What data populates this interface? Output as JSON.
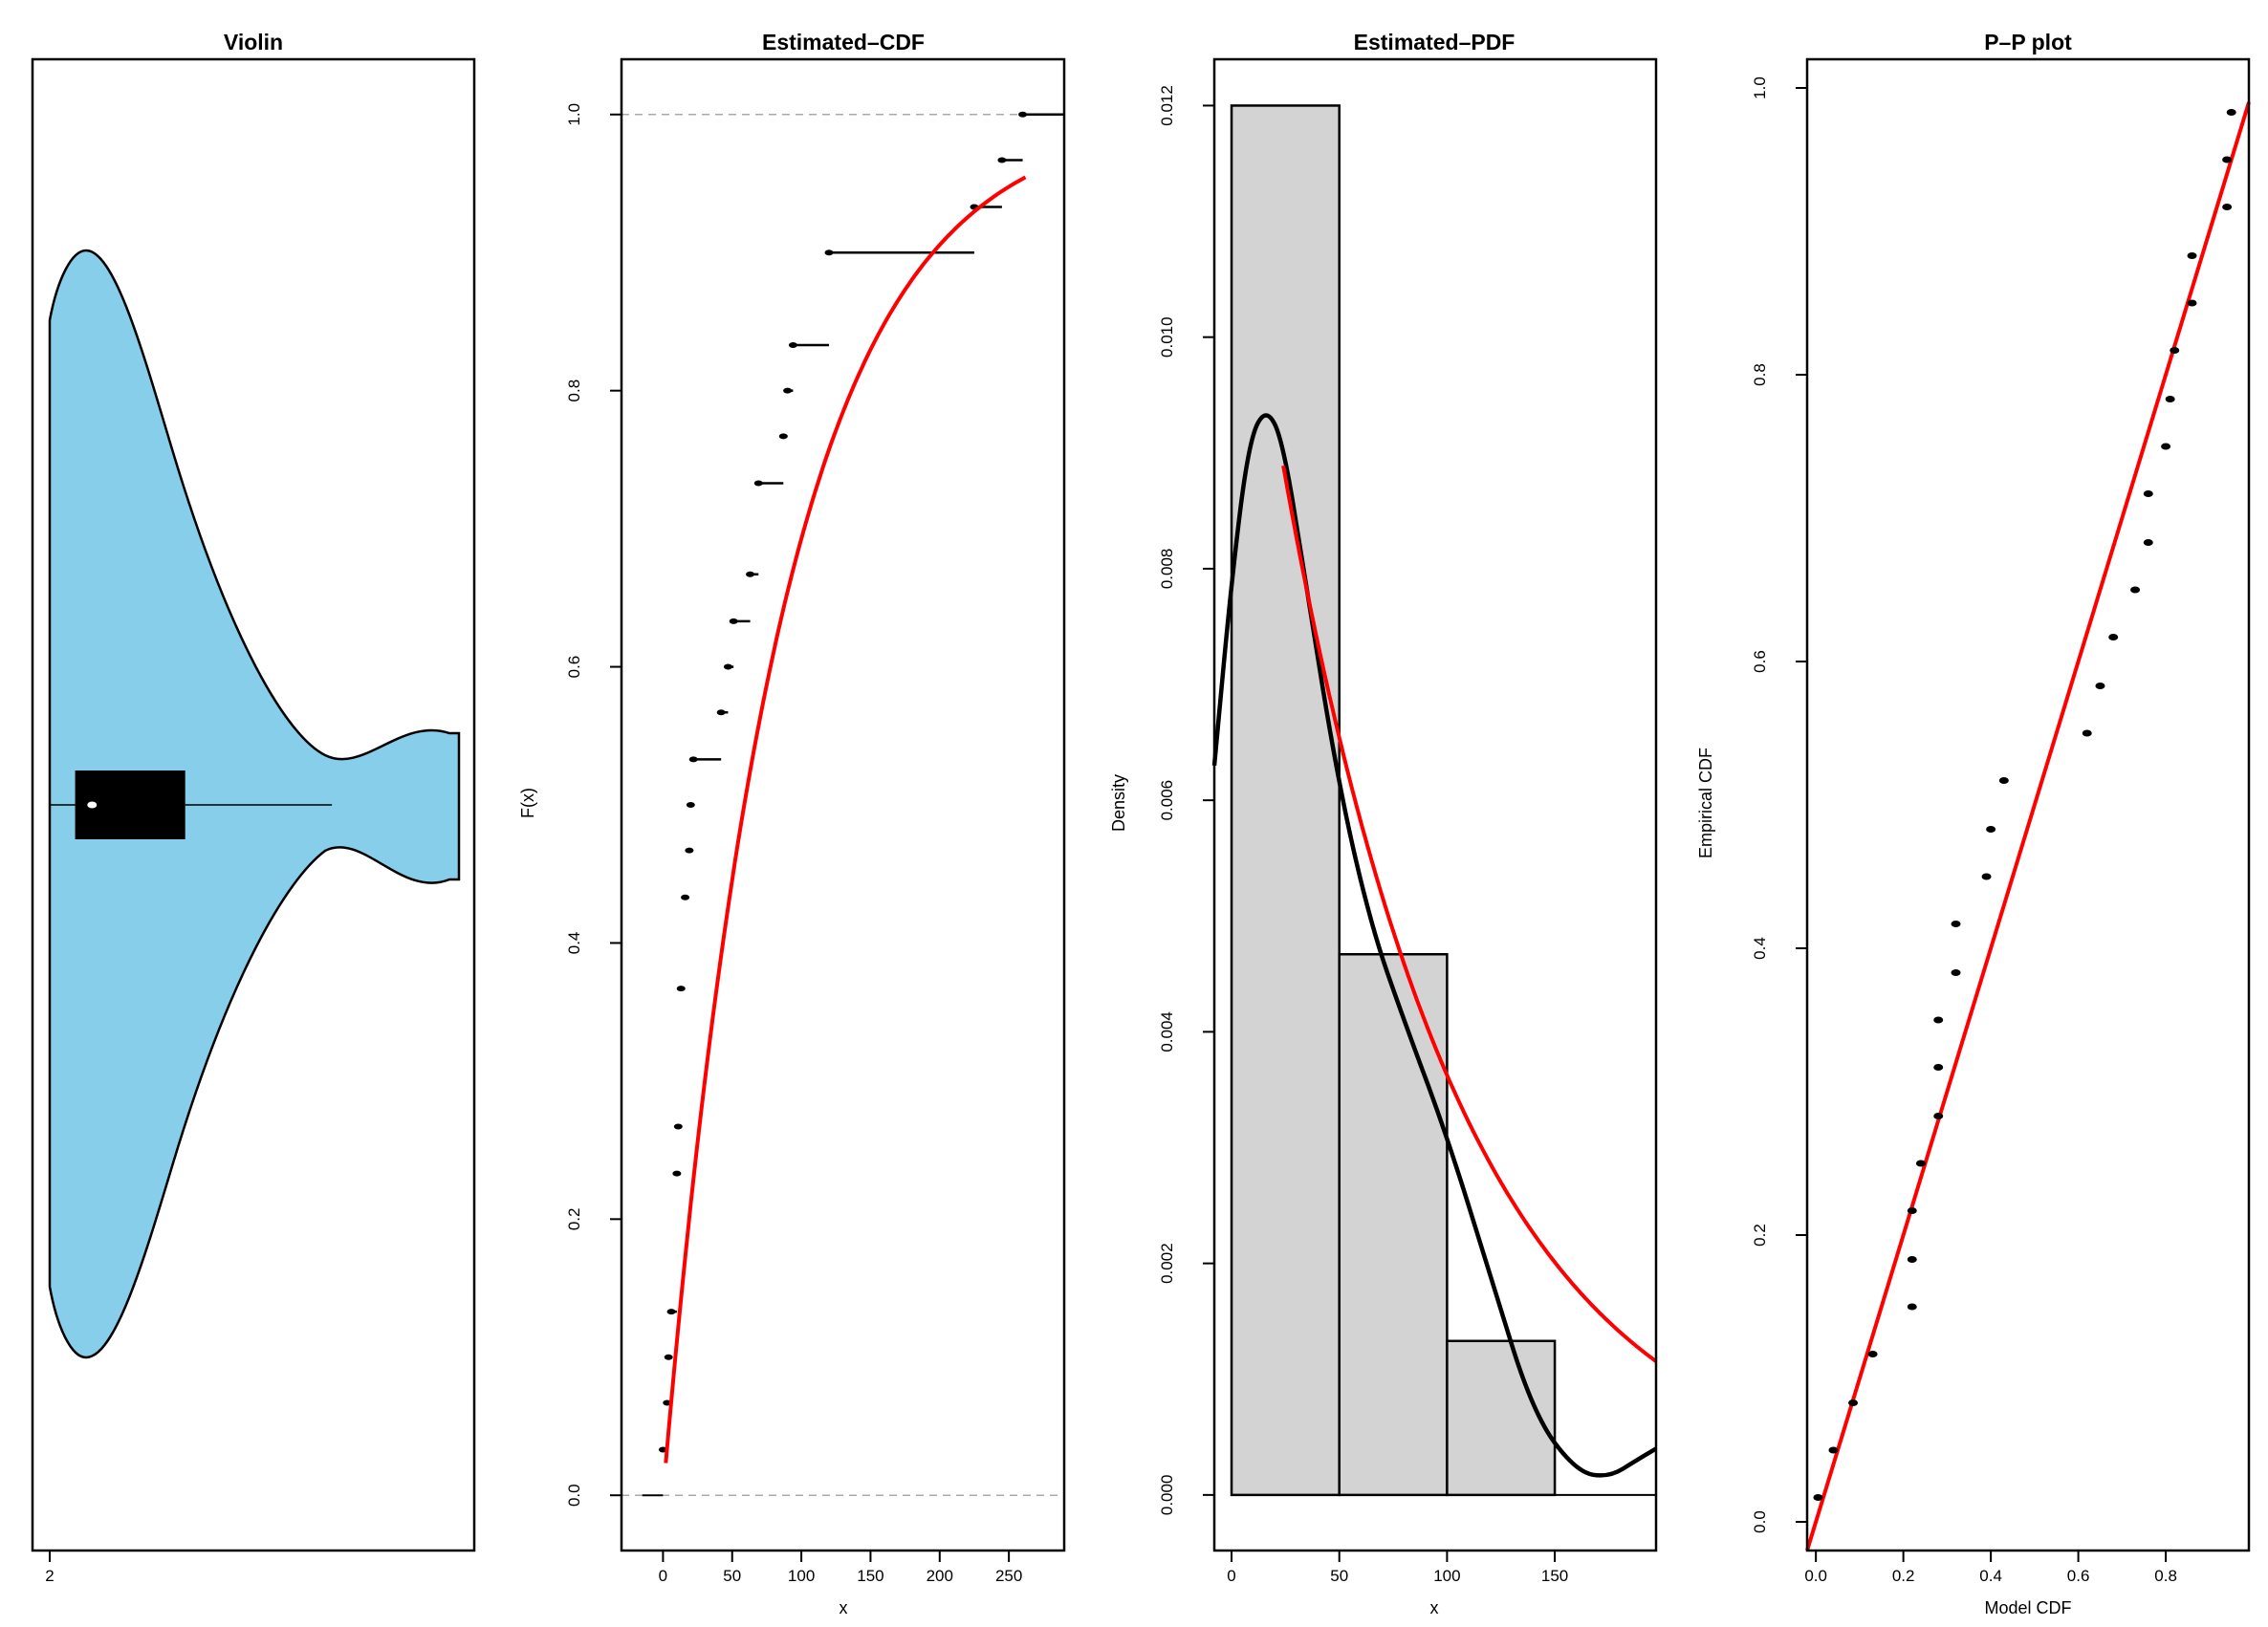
{
  "colors": {
    "violin_fill": "#87CEEB",
    "fit_line": "#FF0000",
    "hist_fill": "#D3D3D3",
    "kde_line": "#000000",
    "reference_line": "#AAAAAA"
  },
  "chart_data": [
    {
      "id": "violin",
      "type": "violin",
      "title": "Violin",
      "xlabel": "",
      "ylabel": "",
      "x_ticks": [
        "2"
      ],
      "density_values": [
        0,
        50,
        100,
        150,
        200,
        250,
        275
      ],
      "half_width_fraction": [
        0.84,
        0.62,
        0.18,
        0.06,
        0.1,
        0.45,
        0.44
      ],
      "box": {
        "q1": 8,
        "median": 20,
        "q3": 86,
        "whisker_high": 190
      },
      "range": [
        -10,
        280
      ]
    },
    {
      "id": "cdf",
      "type": "line",
      "title": "Estimated–CDF",
      "xlabel": "x",
      "ylabel": "F(x)",
      "xlim": [
        -30,
        290
      ],
      "ylim": [
        -0.04,
        1.04
      ],
      "x_ticks": [
        "0",
        "50",
        "100",
        "150",
        "200",
        "250"
      ],
      "y_ticks": [
        "0.0",
        "0.2",
        "0.4",
        "0.6",
        "0.8",
        "1.0"
      ],
      "steps": [
        {
          "x": 0,
          "y": 0.033,
          "x_end": 3
        },
        {
          "x": 3,
          "y": 0.067,
          "x_end": 4
        },
        {
          "x": 4,
          "y": 0.1,
          "x_end": 6
        },
        {
          "x": 6,
          "y": 0.133,
          "x_end": 10
        },
        {
          "x": 10,
          "y": 0.233,
          "x_end": 11
        },
        {
          "x": 11,
          "y": 0.267,
          "x_end": 13
        },
        {
          "x": 13,
          "y": 0.367,
          "x_end": 16
        },
        {
          "x": 16,
          "y": 0.433,
          "x_end": 19
        },
        {
          "x": 19,
          "y": 0.467,
          "x_end": 20
        },
        {
          "x": 20,
          "y": 0.5,
          "x_end": 22
        },
        {
          "x": 22,
          "y": 0.533,
          "x_end": 42
        },
        {
          "x": 42,
          "y": 0.567,
          "x_end": 47
        },
        {
          "x": 47,
          "y": 0.6,
          "x_end": 51
        },
        {
          "x": 51,
          "y": 0.633,
          "x_end": 63
        },
        {
          "x": 63,
          "y": 0.667,
          "x_end": 69
        },
        {
          "x": 69,
          "y": 0.733,
          "x_end": 87
        },
        {
          "x": 87,
          "y": 0.767,
          "x_end": 90
        },
        {
          "x": 90,
          "y": 0.8,
          "x_end": 94
        },
        {
          "x": 94,
          "y": 0.833,
          "x_end": 120
        },
        {
          "x": 120,
          "y": 0.9,
          "x_end": 225
        },
        {
          "x": 225,
          "y": 0.933,
          "x_end": 245
        },
        {
          "x": 245,
          "y": 0.967,
          "x_end": 260
        },
        {
          "x": 260,
          "y": 1.0,
          "x_end": 290
        }
      ],
      "fit_rate": 0.0118,
      "fit_range": [
        2,
        262
      ],
      "reference_levels": [
        0,
        1
      ]
    },
    {
      "id": "pdf",
      "type": "histogram",
      "title": "Estimated–PDF",
      "xlabel": "x",
      "ylabel": "Density",
      "xlim": [
        -8,
        197
      ],
      "ylim": [
        -0.00048,
        0.0124
      ],
      "x_ticks": [
        "0",
        "50",
        "100",
        "150"
      ],
      "y_ticks": [
        "0.000",
        "0.002",
        "0.004",
        "0.006",
        "0.008",
        "0.010",
        "0.012"
      ],
      "bins": [
        {
          "from": 0,
          "to": 50,
          "density": 0.012
        },
        {
          "from": 50,
          "to": 100,
          "density": 0.00467
        },
        {
          "from": 100,
          "to": 150,
          "density": 0.00133
        }
      ],
      "kde": [
        {
          "x": -8,
          "y": 0.0063
        },
        {
          "x": 0,
          "y": 0.0079
        },
        {
          "x": 8,
          "y": 0.0091
        },
        {
          "x": 16,
          "y": 0.0094
        },
        {
          "x": 24,
          "y": 0.0091
        },
        {
          "x": 35,
          "y": 0.0078
        },
        {
          "x": 50,
          "y": 0.0061
        },
        {
          "x": 65,
          "y": 0.0049
        },
        {
          "x": 80,
          "y": 0.0041
        },
        {
          "x": 100,
          "y": 0.0031
        },
        {
          "x": 120,
          "y": 0.0019
        },
        {
          "x": 140,
          "y": 0.0007
        },
        {
          "x": 160,
          "y": 0.0002
        },
        {
          "x": 175,
          "y": 0.00015
        },
        {
          "x": 188,
          "y": 0.0003
        },
        {
          "x": 197,
          "y": 0.0004
        }
      ],
      "fit_rate": 0.0118,
      "fit_scale": 0.0118,
      "fit_range": [
        24,
        197
      ]
    },
    {
      "id": "pp",
      "type": "scatter",
      "title": "P–P plot",
      "xlabel": "Model CDF",
      "ylabel": "Empirical CDF",
      "xlim": [
        -0.02,
        0.99
      ],
      "ylim": [
        -0.02,
        1.02
      ],
      "x_ticks": [
        "0.0",
        "0.2",
        "0.4",
        "0.6",
        "0.8"
      ],
      "y_ticks": [
        "0.0",
        "0.2",
        "0.4",
        "0.6",
        "0.8",
        "1.0"
      ],
      "points": [
        {
          "x": 0.005,
          "y": 0.017
        },
        {
          "x": 0.04,
          "y": 0.05
        },
        {
          "x": 0.085,
          "y": 0.083
        },
        {
          "x": 0.13,
          "y": 0.117
        },
        {
          "x": 0.22,
          "y": 0.15
        },
        {
          "x": 0.22,
          "y": 0.183
        },
        {
          "x": 0.22,
          "y": 0.217
        },
        {
          "x": 0.24,
          "y": 0.25
        },
        {
          "x": 0.28,
          "y": 0.283
        },
        {
          "x": 0.28,
          "y": 0.317
        },
        {
          "x": 0.28,
          "y": 0.35
        },
        {
          "x": 0.32,
          "y": 0.383
        },
        {
          "x": 0.32,
          "y": 0.417
        },
        {
          "x": 0.39,
          "y": 0.45
        },
        {
          "x": 0.4,
          "y": 0.483
        },
        {
          "x": 0.43,
          "y": 0.517
        },
        {
          "x": 0.62,
          "y": 0.55
        },
        {
          "x": 0.65,
          "y": 0.583
        },
        {
          "x": 0.68,
          "y": 0.617
        },
        {
          "x": 0.73,
          "y": 0.65
        },
        {
          "x": 0.76,
          "y": 0.683
        },
        {
          "x": 0.76,
          "y": 0.717
        },
        {
          "x": 0.8,
          "y": 0.75
        },
        {
          "x": 0.81,
          "y": 0.783
        },
        {
          "x": 0.82,
          "y": 0.817
        },
        {
          "x": 0.86,
          "y": 0.85
        },
        {
          "x": 0.86,
          "y": 0.883
        },
        {
          "x": 0.94,
          "y": 0.917
        },
        {
          "x": 0.94,
          "y": 0.95
        },
        {
          "x": 0.95,
          "y": 0.983
        }
      ],
      "reference_line": {
        "slope": 1,
        "intercept": 0
      }
    }
  ]
}
